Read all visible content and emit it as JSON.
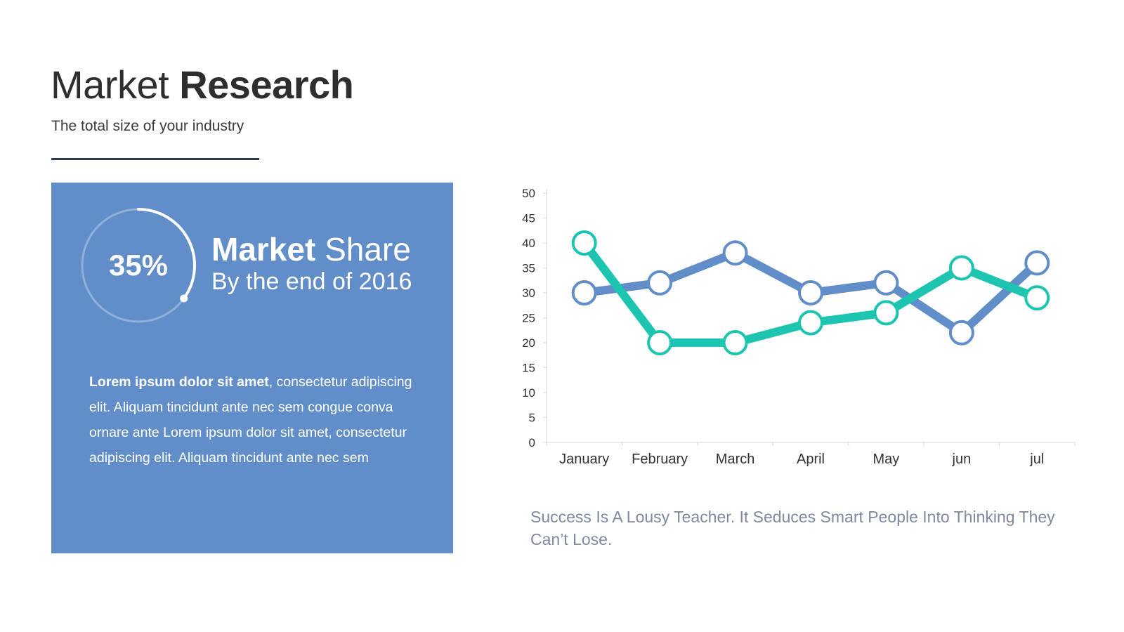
{
  "header": {
    "title_light": "Market",
    "title_bold": "Research",
    "subtitle": "The total size of your industry"
  },
  "card": {
    "percent_label": "35%",
    "percent_value": 0.35,
    "share_bold": "Market",
    "share_light": "Share",
    "share_sub": "By the end of 2016",
    "body_bold": "Lorem ipsum dolor sit amet",
    "body_rest": ", consectetur adipiscing elit. Aliquam tincidunt ante nec sem congue conva ornare ante Lorem ipsum dolor sit amet, consectetur adipiscing elit. Aliquam tincidunt ante nec sem",
    "accent_color": "#618ec9"
  },
  "chart_data": {
    "type": "line",
    "categories": [
      "January",
      "February",
      "March",
      "April",
      "May",
      "jun",
      "jul"
    ],
    "series": [
      {
        "values": [
          30,
          32,
          38,
          30,
          32,
          22,
          36
        ],
        "color": "#618ec9"
      },
      {
        "values": [
          40,
          20,
          20,
          24,
          26,
          35,
          29
        ],
        "color": "#1dc4b0"
      }
    ],
    "ylim": [
      0,
      50
    ],
    "yticks": [
      "0",
      "5",
      "10",
      "15",
      "20",
      "25",
      "30",
      "35",
      "40",
      "45",
      "50"
    ],
    "grid": false,
    "legend": "none"
  },
  "quote": "Success Is A Lousy Teacher. It Seduces Smart People Into Thinking They Can’t Lose."
}
